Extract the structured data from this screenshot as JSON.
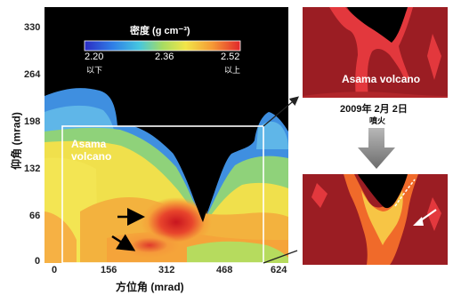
{
  "main_plot": {
    "y_axis_label": "仰角 (mrad)",
    "x_axis_label": "方位角 (mrad)",
    "y_ticks": [
      "330",
      "264",
      "198",
      "132",
      "66",
      "0"
    ],
    "x_ticks": [
      "0",
      "156",
      "312",
      "468",
      "624"
    ],
    "colorbar": {
      "title": "密度 (g cm⁻³)",
      "min_label": "2.20",
      "mid_label": "2.36",
      "max_label": "2.52",
      "below_note": "以下",
      "above_note": "以上"
    },
    "volcano_label_line1": "Asama",
    "volcano_label_line2": "volcano"
  },
  "top_inset": {
    "label": "Asama volcano"
  },
  "caption": {
    "date": "2009年 2月 2日",
    "event": "噴火"
  },
  "colors": {
    "low_blue": "#3a6fd8",
    "cyan": "#4fc7e0",
    "green": "#9ad36a",
    "yellow": "#f2e24a",
    "orange": "#f5a43a",
    "red": "#e03a2c",
    "dark_red": "#9b1d23",
    "black": "#000000"
  }
}
